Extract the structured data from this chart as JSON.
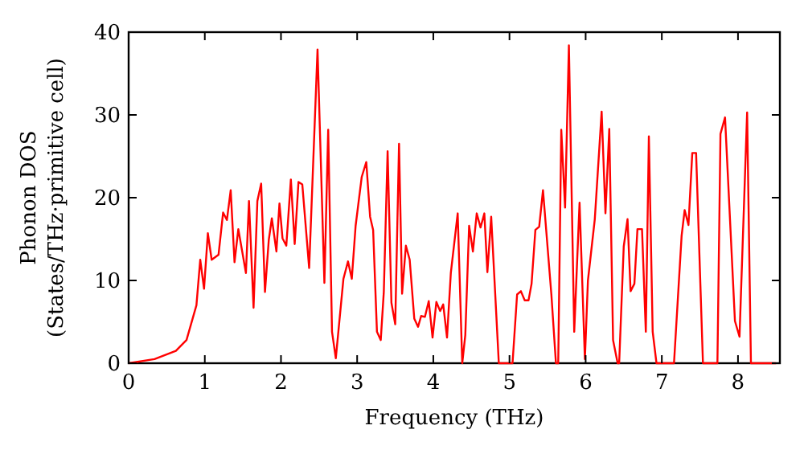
{
  "chart_data": {
    "type": "line",
    "xlabel": "Frequency (THz)",
    "ylabel": "Phonon DOS\n(States/THz·primitive cell)",
    "xlim": [
      0,
      8.55
    ],
    "ylim": [
      0,
      40
    ],
    "xticks": [
      0,
      1,
      2,
      3,
      4,
      5,
      6,
      7,
      8
    ],
    "yticks": [
      0,
      10,
      20,
      30,
      40
    ],
    "grid": false,
    "marker": "none",
    "line_style": "solid",
    "series": [
      {
        "color": "#ff0000",
        "x": [
          0,
          0.34,
          0.62,
          0.76,
          0.89,
          0.94,
          0.99,
          1.04,
          1.09,
          1.18,
          1.24,
          1.29,
          1.34,
          1.39,
          1.44,
          1.54,
          1.58,
          1.64,
          1.69,
          1.74,
          1.79,
          1.84,
          1.88,
          1.94,
          1.98,
          2.02,
          2.07,
          2.13,
          2.18,
          2.23,
          2.28,
          2.37,
          2.48,
          2.57,
          2.62,
          2.67,
          2.72,
          2.82,
          2.88,
          2.93,
          2.98,
          3.06,
          3.12,
          3.17,
          3.21,
          3.26,
          3.31,
          3.35,
          3.4,
          3.45,
          3.5,
          3.55,
          3.59,
          3.64,
          3.69,
          3.75,
          3.8,
          3.84,
          3.89,
          3.94,
          3.99,
          4.04,
          4.09,
          4.13,
          4.18,
          4.23,
          4.32,
          4.38,
          4.42,
          4.47,
          4.52,
          4.57,
          4.62,
          4.67,
          4.71,
          4.76,
          4.86,
          5.04,
          5.1,
          5.15,
          5.2,
          5.25,
          5.29,
          5.34,
          5.39,
          5.44,
          5.55,
          5.61,
          5.64,
          5.68,
          5.73,
          5.78,
          5.85,
          5.92,
          5.99,
          6.03,
          6.12,
          6.21,
          6.26,
          6.31,
          6.36,
          6.42,
          6.44,
          6.5,
          6.55,
          6.59,
          6.64,
          6.68,
          6.74,
          6.79,
          6.83,
          6.88,
          6.93,
          7.16,
          7.26,
          7.3,
          7.35,
          7.4,
          7.45,
          7.54,
          7.73,
          7.77,
          7.83,
          7.96,
          8.02,
          8.12,
          8.17,
          8.5
        ],
        "values": [
          0,
          0.5,
          1.5,
          2.8,
          7,
          12.5,
          9,
          15.7,
          12.5,
          13.1,
          18.2,
          17.3,
          20.9,
          12.2,
          16.2,
          10.9,
          19.6,
          6.7,
          19.6,
          21.7,
          8.6,
          14.9,
          17.5,
          13.5,
          19.3,
          15.1,
          14.2,
          22.2,
          14.4,
          21.9,
          21.6,
          11.5,
          37.9,
          9.7,
          28.2,
          3.8,
          0.6,
          10.2,
          12.3,
          10.2,
          16.6,
          22.5,
          24.3,
          17.7,
          16.1,
          3.8,
          2.8,
          8.6,
          25.6,
          7.3,
          4.7,
          26.5,
          8.4,
          14.2,
          12.5,
          5.4,
          4.4,
          5.7,
          5.6,
          7.5,
          3.1,
          7.4,
          6.3,
          7.1,
          3.1,
          10.9,
          18.1,
          0,
          3.4,
          16.6,
          13.5,
          18.1,
          16.4,
          18.1,
          11,
          17.7,
          0,
          0,
          8.3,
          8.7,
          7.6,
          7.6,
          9.6,
          16.1,
          16.5,
          20.9,
          8.3,
          0,
          0,
          28.2,
          18.8,
          38.4,
          3.8,
          19.4,
          0.5,
          10,
          17.4,
          30.4,
          18.1,
          28.3,
          2.8,
          0,
          0,
          14.1,
          17.4,
          8.7,
          9.6,
          16.2,
          16.2,
          3.8,
          27.4,
          3.8,
          0,
          0,
          15.4,
          18.5,
          16.7,
          25.4,
          25.4,
          0,
          0,
          27.7,
          29.7,
          5.1,
          3.2,
          30.3,
          0,
          0
        ]
      }
    ]
  }
}
